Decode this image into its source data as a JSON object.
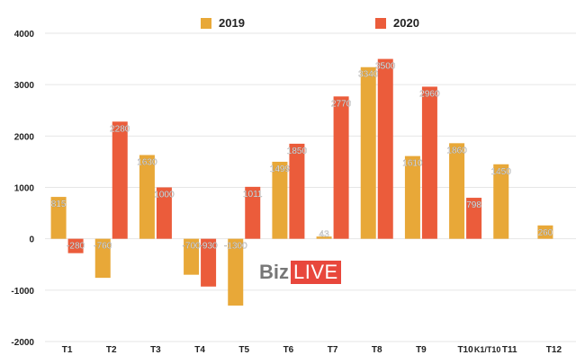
{
  "chart_data": {
    "type": "bar",
    "categories": [
      "T1",
      "T2",
      "T3",
      "T4",
      "T5",
      "T6",
      "T7",
      "T8",
      "T9",
      "T10",
      "T11",
      "T12"
    ],
    "extra_label": "K1/T10",
    "series": [
      {
        "name": "2019",
        "color": "#E8A838",
        "values": [
          815,
          -760,
          1630,
          -700,
          -1300,
          1499,
          43,
          3340,
          1610,
          1860,
          1450,
          260
        ],
        "labels": [
          "815",
          "-760",
          "1630",
          "-700",
          "-1300",
          "1499",
          "43",
          "3340",
          "1610",
          "1860",
          "1450",
          "260"
        ]
      },
      {
        "name": "2020",
        "color": "#EB5C3B",
        "values": [
          -280,
          2280,
          1000,
          -930,
          1011,
          1850,
          2770,
          3500,
          2960,
          798,
          null,
          null
        ],
        "labels": [
          "-280",
          "2280",
          "1000",
          "-930",
          "1011",
          "1850",
          "2770",
          "3500",
          "2960",
          "798",
          "",
          ""
        ]
      }
    ],
    "ylim": [
      -2000,
      4000
    ],
    "yticks": [
      -2000,
      -1000,
      0,
      1000,
      2000,
      3000,
      4000
    ],
    "ytick_labels": [
      "-2000",
      "-1000",
      "0",
      "1000",
      "2000",
      "3000",
      "4000"
    ],
    "grid": true,
    "legend_position": "top-center"
  },
  "watermark": {
    "biz": "Biz",
    "live": "LIVE"
  }
}
